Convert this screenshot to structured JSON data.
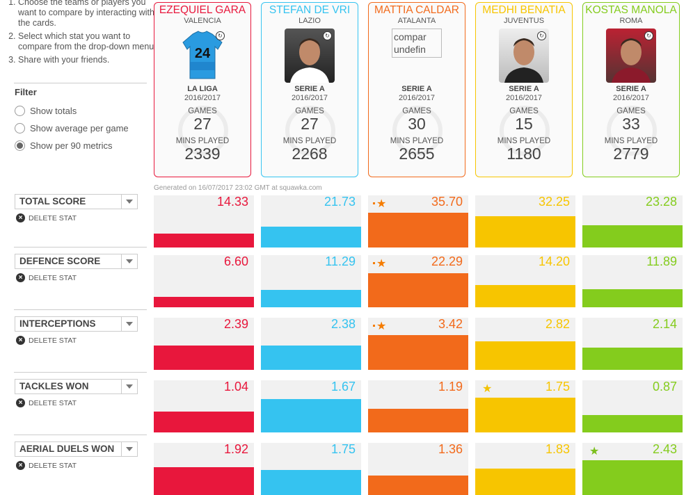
{
  "instructions": [
    "Choose the teams or players you want to compare by interacting with the cards.",
    "Select which stat you want to compare from the drop-down menu.",
    "Share with your friends."
  ],
  "filter": {
    "title": "Filter",
    "options": [
      {
        "label": "Show totals",
        "checked": false
      },
      {
        "label": "Show average per game",
        "checked": false
      },
      {
        "label": "Show per 90 metrics",
        "checked": true
      }
    ]
  },
  "players": [
    {
      "name": "EZEQUIEL GARA",
      "team": "VALENCIA",
      "league": "LA LIGA",
      "season": "2016/2017",
      "games_label": "GAMES",
      "games": "27",
      "mins_label": "MINS PLAYED",
      "mins": "2339",
      "color": "#e8173c",
      "photo_alt": ""
    },
    {
      "name": "STEFAN DE VRI",
      "team": "LAZIO",
      "league": "SERIE A",
      "season": "2016/2017",
      "games_label": "GAMES",
      "games": "27",
      "mins_label": "MINS PLAYED",
      "mins": "2268",
      "color": "#35c3f0",
      "photo_alt": ""
    },
    {
      "name": "MATTIA CALDAR",
      "team": "ATALANTA",
      "league": "SERIE A",
      "season": "2016/2017",
      "games_label": "GAMES",
      "games": "30",
      "mins_label": "MINS PLAYED",
      "mins": "2655",
      "color": "#f26a1b",
      "photo_alt": "compar undefin"
    },
    {
      "name": "MEDHI BENATIA",
      "team": "JUVENTUS",
      "league": "SERIE A",
      "season": "2016/2017",
      "games_label": "GAMES",
      "games": "15",
      "mins_label": "MINS PLAYED",
      "mins": "1180",
      "color": "#f7c500",
      "photo_alt": ""
    },
    {
      "name": "KOSTAS MANOLA",
      "team": "ROMA",
      "league": "SERIE A",
      "season": "2016/2017",
      "games_label": "GAMES",
      "games": "33",
      "mins_label": "MINS PLAYED",
      "mins": "2779",
      "color": "#84cc1d",
      "photo_alt": ""
    }
  ],
  "jersey_number": "24",
  "generated": "Generated on 16/07/2017 23:02 GMT at squawka.com",
  "delete_label": "DELETE STAT",
  "stats": [
    {
      "name": "TOTAL SCORE",
      "values": [
        "14.33",
        "21.73",
        "35.70",
        "32.25",
        "23.28"
      ],
      "fill": [
        0.27,
        0.4,
        0.67,
        0.6,
        0.43
      ],
      "best": 2
    },
    {
      "name": "DEFENCE SCORE",
      "values": [
        "6.60",
        "11.29",
        "22.29",
        "14.20",
        "11.89"
      ],
      "fill": [
        0.2,
        0.33,
        0.65,
        0.42,
        0.35
      ],
      "best": 2
    },
    {
      "name": "INTERCEPTIONS",
      "values": [
        "2.39",
        "2.38",
        "3.42",
        "2.82",
        "2.14"
      ],
      "fill": [
        0.47,
        0.47,
        0.67,
        0.55,
        0.42
      ],
      "best": 2
    },
    {
      "name": "TACKLES WON",
      "values": [
        "1.04",
        "1.67",
        "1.19",
        "1.75",
        "0.87"
      ],
      "fill": [
        0.4,
        0.64,
        0.45,
        0.67,
        0.33
      ],
      "best": 3
    },
    {
      "name": "AERIAL DUELS WON",
      "values": [
        "1.92",
        "1.75",
        "1.36",
        "1.83",
        "2.43"
      ],
      "fill": [
        0.53,
        0.48,
        0.37,
        0.5,
        0.67
      ],
      "best": 4
    }
  ]
}
